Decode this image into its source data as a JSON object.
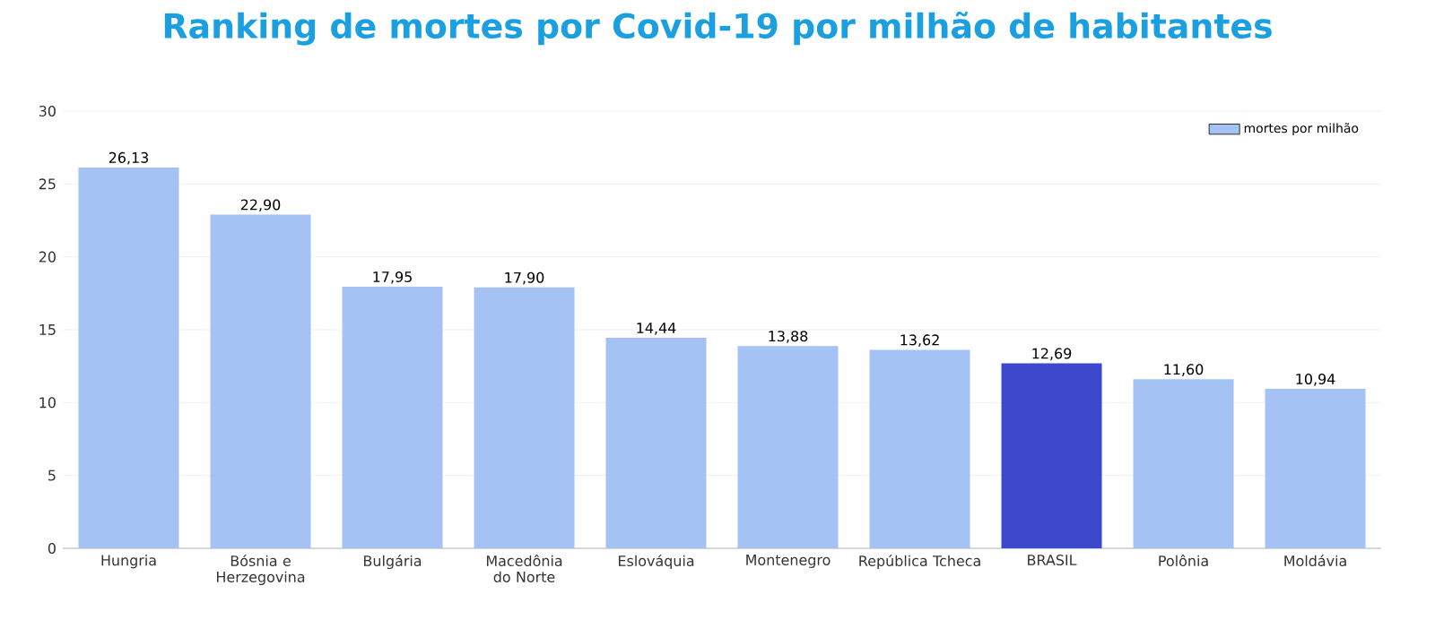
{
  "chart_data": {
    "type": "bar",
    "title": "Ranking de mortes por Covid-19 por milhão de habitantes",
    "categories": [
      "Hungria",
      "Bósnia e Herzegovina",
      "Bulgária",
      "Macedônia do Norte",
      "Eslováquia",
      "Montenegro",
      "República Tcheca",
      "BRASIL",
      "Polônia",
      "Moldávia"
    ],
    "series": [
      {
        "name": "mortes por milhão",
        "color": "#a4c2f4",
        "colors": [
          "#a4c2f4",
          "#a4c2f4",
          "#a4c2f4",
          "#a4c2f4",
          "#a4c2f4",
          "#a4c2f4",
          "#a4c2f4",
          "#3d49cc",
          "#a4c2f4",
          "#a4c2f4"
        ],
        "values": [
          26.13,
          22.9,
          17.95,
          17.9,
          14.44,
          13.88,
          13.62,
          12.69,
          11.6,
          10.94
        ],
        "value_labels": [
          "26,13",
          "22,90",
          "17,95",
          "17,90",
          "14,44",
          "13,88",
          "13,62",
          "12,69",
          "11,60",
          "10,94"
        ]
      }
    ],
    "ylim": [
      0,
      30
    ],
    "yticks": [
      0,
      5,
      10,
      15,
      20,
      25,
      30
    ],
    "grid": "y",
    "legend": "top right"
  }
}
